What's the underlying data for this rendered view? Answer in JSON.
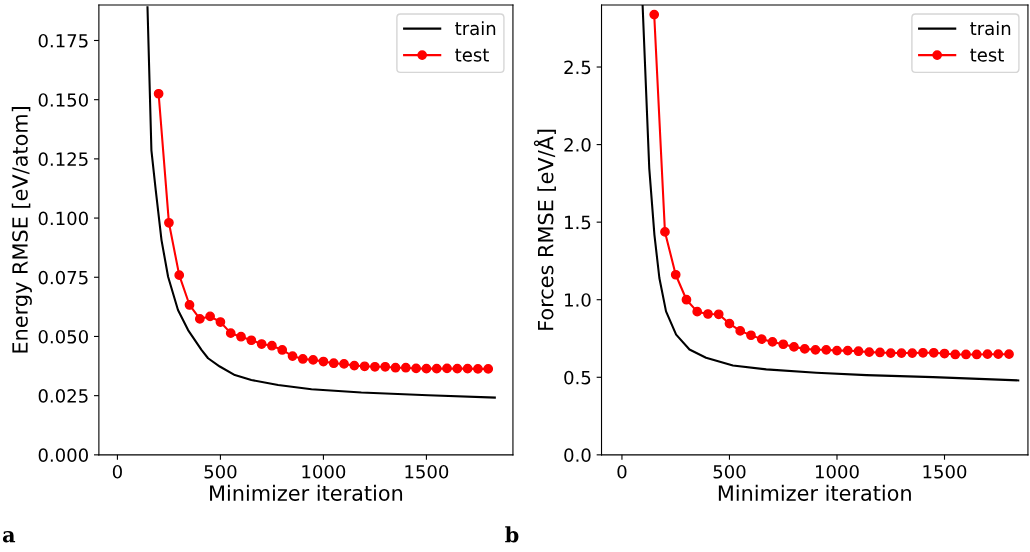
{
  "chart_data": [
    {
      "type": "line",
      "xlabel": "Minimizer iteration",
      "ylabel": "Energy RMSE [eV/atom]",
      "annotations": [
        "a"
      ],
      "legend": "top right",
      "grid": false,
      "xlim": [
        -90,
        1920
      ],
      "xticks": [
        0,
        500,
        1000,
        1500
      ],
      "ylim": [
        0,
        0.19
      ],
      "yticks": [
        {
          "value": 0,
          "label": "0.000"
        },
        {
          "value": 0.025,
          "label": "0.025"
        },
        {
          "value": 0.05,
          "label": "0.050"
        },
        {
          "value": 0.075,
          "label": "0.075"
        },
        {
          "value": 0.1,
          "label": "0.100"
        },
        {
          "value": 0.125,
          "label": "0.125"
        },
        {
          "value": 0.15,
          "label": "0.150"
        },
        {
          "value": 0.175,
          "label": "0.175"
        }
      ],
      "series": [
        {
          "name": "train",
          "color": "#000000",
          "marker": "none",
          "x": [
            146,
            165,
            186,
            214,
            246,
            294,
            343,
            408,
            440,
            497,
            570,
            650,
            780,
            942,
            1184,
            1508,
            1832
          ],
          "values": [
            0.189,
            0.1286,
            0.1118,
            0.0907,
            0.0752,
            0.0612,
            0.0527,
            0.0443,
            0.0408,
            0.0373,
            0.0337,
            0.0316,
            0.0295,
            0.0277,
            0.0263,
            0.0252,
            0.0242
          ]
        },
        {
          "name": "test",
          "color": "#ff0000",
          "marker": "circle",
          "x": [
            200,
            250,
            300,
            350,
            400,
            450,
            500,
            550,
            600,
            650,
            700,
            750,
            800,
            850,
            900,
            950,
            1000,
            1050,
            1100,
            1150,
            1200,
            1250,
            1300,
            1350,
            1400,
            1450,
            1500,
            1550,
            1600,
            1650,
            1700,
            1750,
            1800
          ],
          "values": [
            0.1525,
            0.098,
            0.0759,
            0.0633,
            0.0574,
            0.0585,
            0.0561,
            0.0514,
            0.0499,
            0.0484,
            0.0468,
            0.0461,
            0.0443,
            0.0417,
            0.0405,
            0.0401,
            0.0394,
            0.0387,
            0.0384,
            0.0377,
            0.0374,
            0.0372,
            0.0372,
            0.0368,
            0.0368,
            0.0365,
            0.0364,
            0.0364,
            0.0365,
            0.0364,
            0.0364,
            0.0363,
            0.0363
          ]
        }
      ]
    },
    {
      "type": "line",
      "xlabel": "Minimizer iteration",
      "ylabel": "Forces RMSE [eV/Å]",
      "annotations": [
        "b"
      ],
      "legend": "top right",
      "grid": false,
      "xlim": [
        -95,
        1888
      ],
      "xticks": [
        0,
        500,
        1000,
        1500
      ],
      "ylim": [
        0,
        2.9
      ],
      "yticks": [
        {
          "value": 0,
          "label": "0.0"
        },
        {
          "value": 0.5,
          "label": "0.5"
        },
        {
          "value": 1,
          "label": "1.0"
        },
        {
          "value": 1.5,
          "label": "1.5"
        },
        {
          "value": 2,
          "label": "2.0"
        },
        {
          "value": 2.5,
          "label": "2.5"
        }
      ],
      "series": [
        {
          "name": "train",
          "color": "#000000",
          "marker": "none",
          "x": [
            96,
            127,
            151,
            174,
            205,
            252,
            314,
            391,
            516,
            671,
            904,
            1137,
            1447,
            1843
          ],
          "values": [
            2.9,
            1.847,
            1.418,
            1.14,
            0.925,
            0.775,
            0.679,
            0.626,
            0.576,
            0.551,
            0.529,
            0.514,
            0.501,
            0.48
          ]
        },
        {
          "name": "test",
          "color": "#ff0000",
          "marker": "circle",
          "x": [
            150,
            200,
            250,
            300,
            350,
            400,
            450,
            500,
            550,
            600,
            650,
            700,
            750,
            800,
            850,
            900,
            950,
            1000,
            1050,
            1100,
            1150,
            1200,
            1250,
            1300,
            1350,
            1400,
            1450,
            1500,
            1550,
            1600,
            1650,
            1700,
            1750,
            1800
          ],
          "values": [
            2.838,
            1.437,
            1.161,
            1.0,
            0.923,
            0.908,
            0.906,
            0.846,
            0.799,
            0.771,
            0.746,
            0.728,
            0.713,
            0.696,
            0.683,
            0.677,
            0.677,
            0.672,
            0.672,
            0.668,
            0.662,
            0.66,
            0.656,
            0.656,
            0.656,
            0.658,
            0.658,
            0.653,
            0.647,
            0.647,
            0.647,
            0.649,
            0.649,
            0.649
          ]
        }
      ]
    }
  ]
}
